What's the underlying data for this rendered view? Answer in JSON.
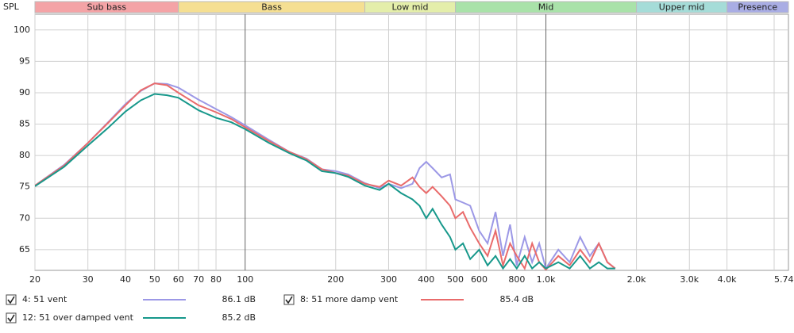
{
  "chart_data": {
    "type": "line",
    "y_label": "SPL",
    "log_x": true,
    "grid": true,
    "xlim": [
      20,
      5740
    ],
    "ylim": [
      61.7,
      102.5
    ],
    "yticks": [
      65,
      70,
      75,
      80,
      85,
      90,
      95,
      100
    ],
    "xticks": [
      20,
      30,
      40,
      50,
      60,
      70,
      80,
      100,
      200,
      300,
      400,
      500,
      600,
      800,
      {
        "value": 1000,
        "label": "1.0k"
      },
      {
        "value": 2000,
        "label": "2.0k"
      },
      {
        "value": 3000,
        "label": "3.0k"
      },
      {
        "value": 4000,
        "label": "4.0k"
      },
      {
        "value": 5740,
        "label": "5.74kHz"
      }
    ],
    "bands": [
      {
        "name": "Sub bass",
        "from": 20,
        "to": 60,
        "color": "#f4a3a6"
      },
      {
        "name": "Bass",
        "from": 60,
        "to": 250,
        "color": "#f5df92"
      },
      {
        "name": "Low mid",
        "from": 250,
        "to": 500,
        "color": "#e4eeaa"
      },
      {
        "name": "Mid",
        "from": 500,
        "to": 2000,
        "color": "#a9e2a9"
      },
      {
        "name": "Upper mid",
        "from": 2000,
        "to": 4000,
        "color": "#a5dcd8"
      },
      {
        "name": "Presence",
        "from": 4000,
        "to": 5740,
        "color": "#a9ade4"
      }
    ],
    "x": [
      20,
      25,
      30,
      35,
      40,
      45,
      50,
      55,
      60,
      70,
      80,
      90,
      100,
      120,
      140,
      160,
      180,
      200,
      220,
      250,
      280,
      300,
      330,
      360,
      380,
      400,
      420,
      450,
      480,
      500,
      530,
      560,
      600,
      640,
      680,
      720,
      760,
      800,
      850,
      900,
      950,
      1000,
      1100,
      1200,
      1300,
      1400,
      1500,
      1600,
      1700
    ],
    "series": [
      {
        "name": "4: 51 vent",
        "color": "#9c98e6",
        "level": {
          "value": 86.1,
          "label": "86.1 dB"
        },
        "values": [
          75.2,
          78.5,
          82,
          85.3,
          88.2,
          90.3,
          91.5,
          91.4,
          90.8,
          88.9,
          87.4,
          86.1,
          84.8,
          82.5,
          80.6,
          79.5,
          77.8,
          77.5,
          77,
          75.6,
          74.8,
          75.5,
          74.8,
          75.5,
          78,
          79,
          78,
          76.5,
          77,
          73,
          72.5,
          72,
          68,
          66,
          71,
          64,
          69,
          62.5,
          67,
          63,
          66,
          62,
          65,
          63,
          67,
          64,
          66,
          63,
          62
        ]
      },
      {
        "name": "8: 51 more damp vent",
        "color": "#e96b6b",
        "level": {
          "value": 85.4,
          "label": "85.4 dB"
        },
        "values": [
          75.2,
          78.4,
          82,
          85.2,
          88,
          90.4,
          91.5,
          91.2,
          90,
          88,
          86.9,
          85.8,
          84.5,
          82.3,
          80.6,
          79.4,
          77.8,
          77.2,
          76.8,
          75.5,
          75,
          76,
          75.2,
          76.5,
          75,
          74,
          75,
          73.5,
          72,
          70,
          71,
          68.5,
          66,
          64,
          68,
          62.5,
          66,
          64,
          62,
          66,
          63,
          61.8,
          64,
          62.5,
          65,
          63,
          66,
          63,
          62
        ]
      },
      {
        "name": "12: 51 over damped vent",
        "color": "#17988b",
        "level": {
          "value": 85.2,
          "label": "85.2 dB"
        },
        "values": [
          75.1,
          78.2,
          81.6,
          84.4,
          87,
          88.8,
          89.8,
          89.6,
          89.2,
          87.2,
          86,
          85.3,
          84.2,
          82,
          80.4,
          79.2,
          77.5,
          77.2,
          76.6,
          75.2,
          74.5,
          75.5,
          74,
          73,
          72,
          70,
          71.5,
          69,
          67,
          65,
          66,
          63.5,
          65,
          62.5,
          64,
          62,
          63.5,
          62,
          64,
          62,
          63,
          62,
          63,
          62,
          64,
          62,
          63,
          62,
          62
        ]
      }
    ]
  }
}
